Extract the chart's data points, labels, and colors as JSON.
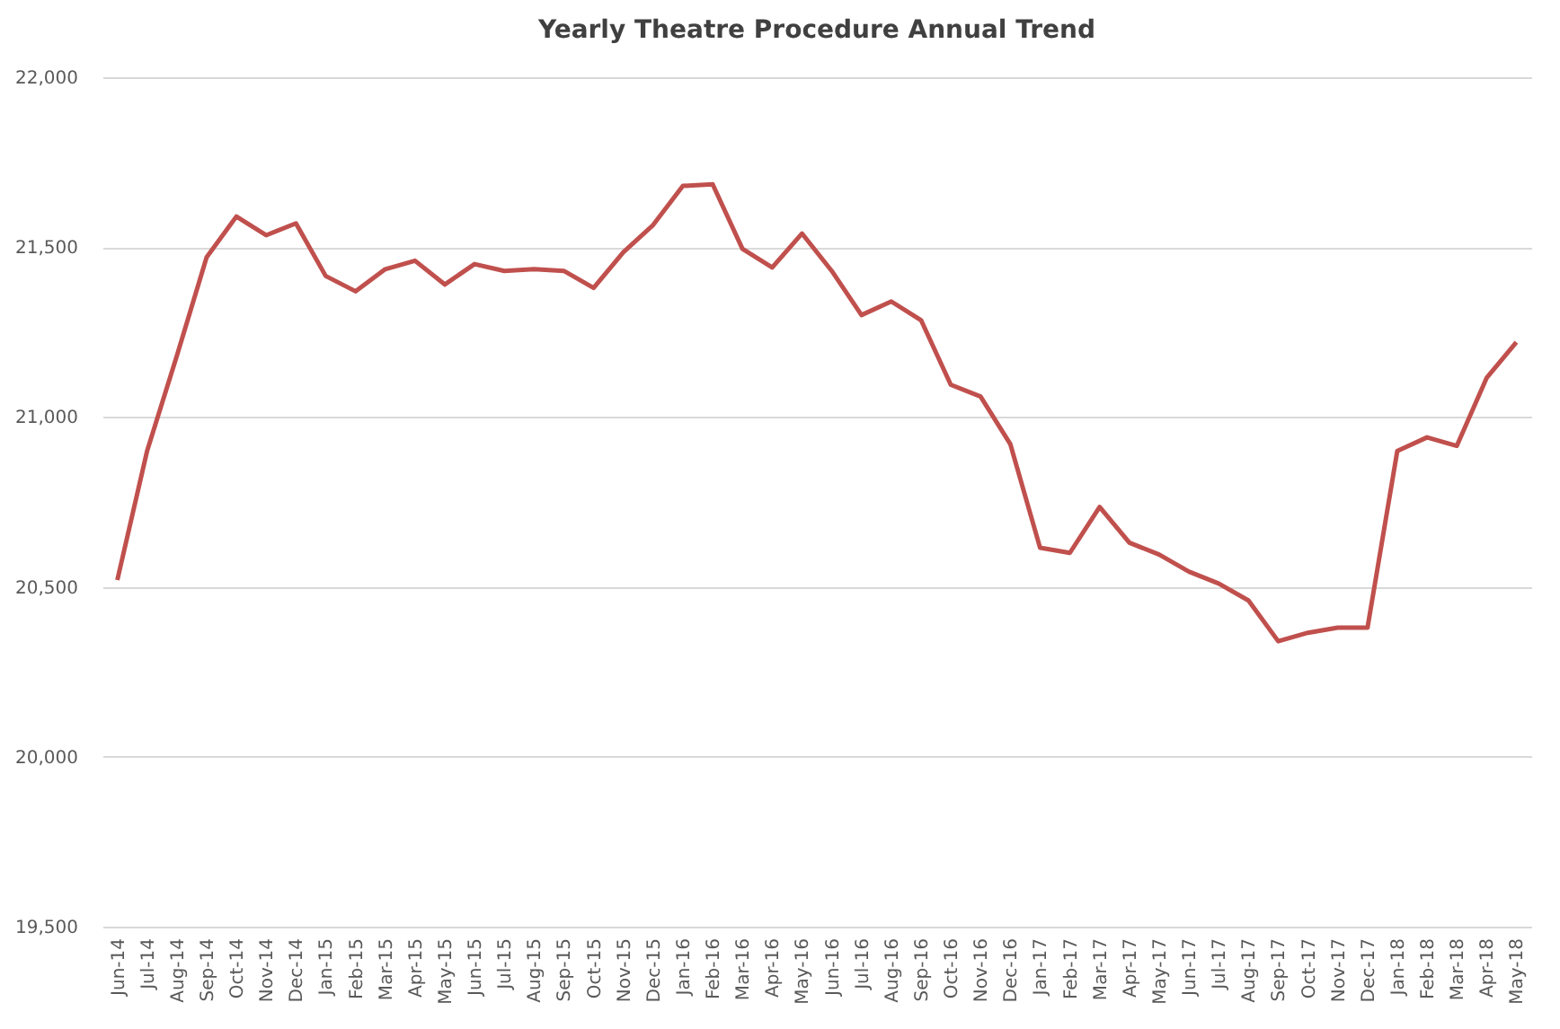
{
  "chart_data": {
    "type": "line",
    "title": "Yearly Theatre Procedure Annual Trend",
    "categories": [
      "Jun-14",
      "Jul-14",
      "Aug-14",
      "Sep-14",
      "Oct-14",
      "Nov-14",
      "Dec-14",
      "Jan-15",
      "Feb-15",
      "Mar-15",
      "Apr-15",
      "May-15",
      "Jun-15",
      "Jul-15",
      "Aug-15",
      "Sep-15",
      "Oct-15",
      "Nov-15",
      "Dec-15",
      "Jan-16",
      "Feb-16",
      "Mar-16",
      "Apr-16",
      "May-16",
      "Jun-16",
      "Jul-16",
      "Aug-16",
      "Sep-16",
      "Oct-16",
      "Nov-16",
      "Dec-16",
      "Jan-17",
      "Feb-17",
      "Mar-17",
      "Apr-17",
      "May-17",
      "Jun-17",
      "Jul-17",
      "Aug-17",
      "Sep-17",
      "Oct-17",
      "Nov-17",
      "Dec-17",
      "Jan-18",
      "Feb-18",
      "Mar-18",
      "Apr-18",
      "May-18"
    ],
    "series": [
      {
        "color": "#c0504d",
        "values": [
          20520,
          20900,
          21180,
          21470,
          21590,
          21535,
          21570,
          21415,
          21370,
          21435,
          21460,
          21390,
          21450,
          21430,
          21435,
          21430,
          21380,
          21485,
          21565,
          21680,
          21685,
          21495,
          21440,
          21540,
          21430,
          21300,
          21340,
          21285,
          21095,
          21060,
          20920,
          20615,
          20600,
          20735,
          20630,
          20595,
          20545,
          20510,
          20460,
          20340,
          20365,
          20380,
          20380,
          20900,
          20940,
          20915,
          21115,
          21220
        ]
      }
    ],
    "ylim": [
      19500,
      22000
    ],
    "yticks": [
      {
        "value": 19500,
        "label": "19,500"
      },
      {
        "value": 20000,
        "label": "20,000"
      },
      {
        "value": 20500,
        "label": "20,500"
      },
      {
        "value": 21000,
        "label": "21,000"
      },
      {
        "value": 21500,
        "label": "21,500"
      },
      {
        "value": 22000,
        "label": "22,000"
      }
    ],
    "grid": "y",
    "legend": false,
    "marker": "none",
    "line_style": "solid"
  }
}
